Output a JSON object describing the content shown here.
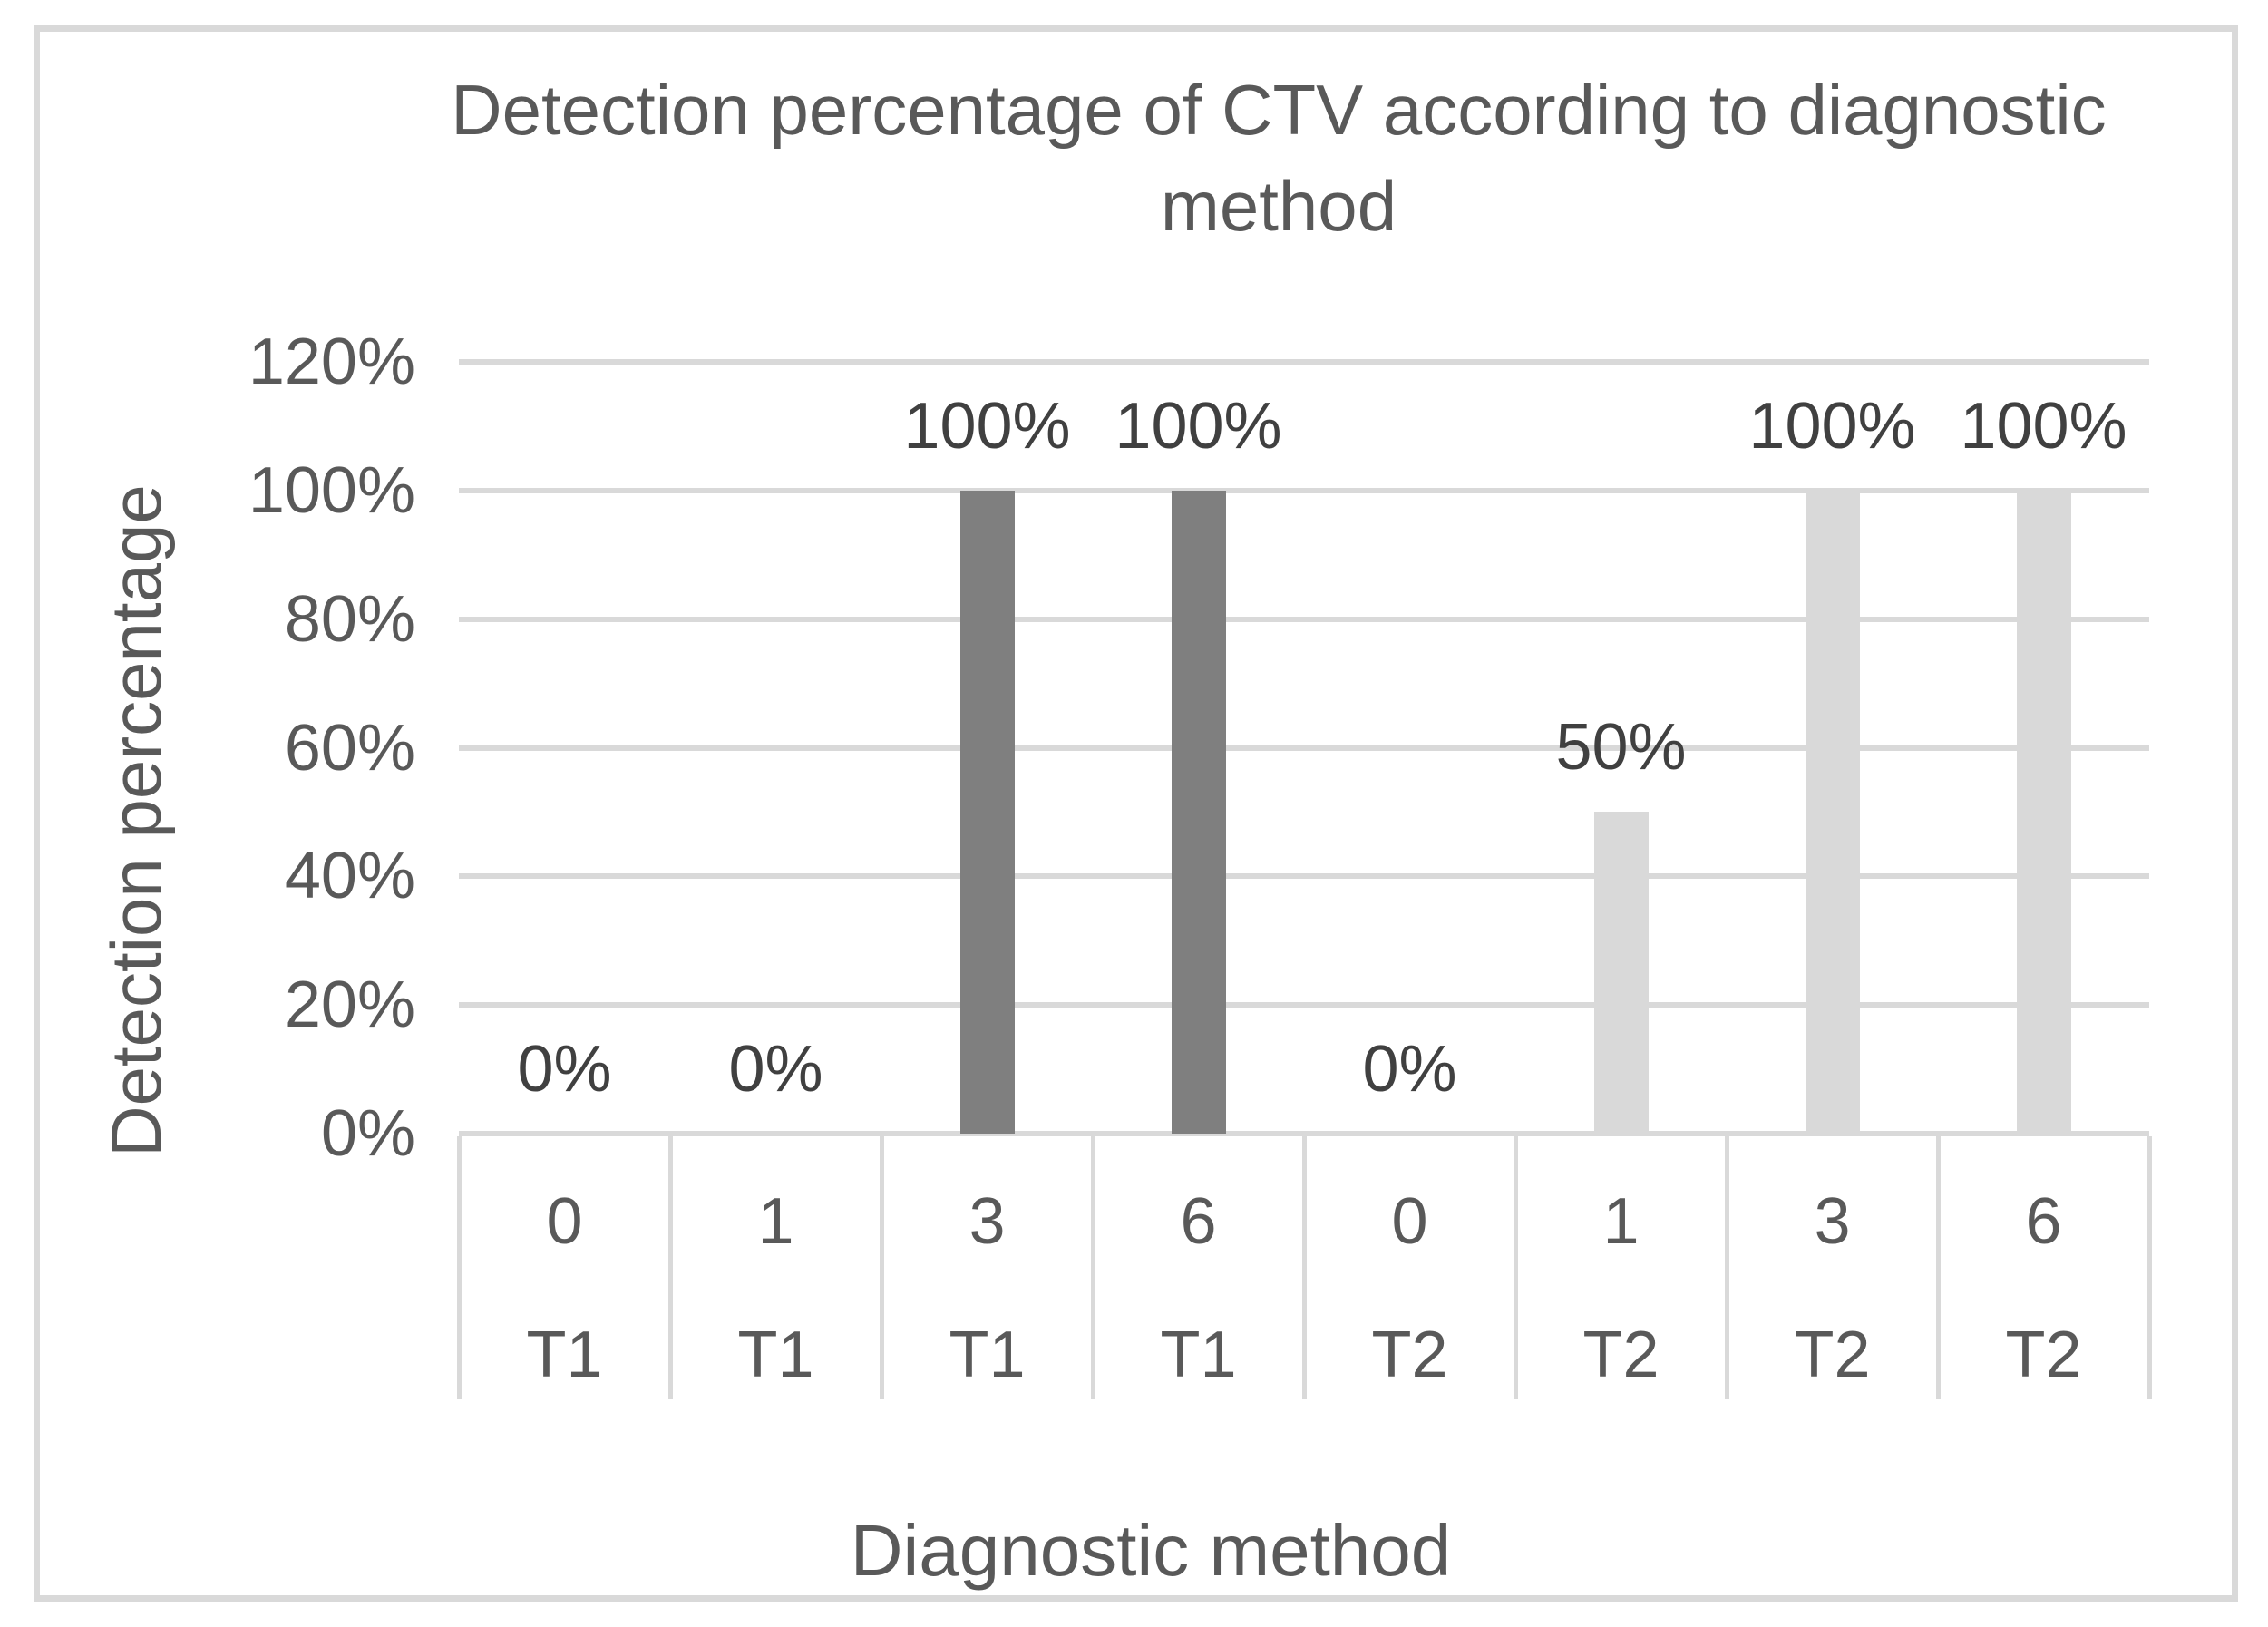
{
  "figure": {
    "title_line1": "Detection percentage of CTV according to diagnostic",
    "title_line2": "method",
    "y_axis_title": "Detection percentage",
    "x_axis_title": "Diagnostic method"
  },
  "chart_data": {
    "type": "bar",
    "title": "Detection percentage of CTV according to diagnostic method",
    "xlabel": "Diagnostic method",
    "ylabel": "Detection percentage",
    "ylim": [
      0,
      1.2
    ],
    "grid": true,
    "legend": "none",
    "y_ticks": [
      {
        "label": "120%",
        "value": 1.2
      },
      {
        "label": "100%",
        "value": 1.0
      },
      {
        "label": "80%",
        "value": 0.8
      },
      {
        "label": "60%",
        "value": 0.6
      },
      {
        "label": "40%",
        "value": 0.4
      },
      {
        "label": "20%",
        "value": 0.2
      },
      {
        "label": "0%",
        "value": 0.0
      }
    ],
    "categories": [
      {
        "x": "0",
        "group": "T1",
        "value": 0.0,
        "data_label": "0%"
      },
      {
        "x": "1",
        "group": "T1",
        "value": 0.0,
        "data_label": "0%"
      },
      {
        "x": "3",
        "group": "T1",
        "value": 1.0,
        "data_label": "100%"
      },
      {
        "x": "6",
        "group": "T1",
        "value": 1.0,
        "data_label": "100%"
      },
      {
        "x": "0",
        "group": "T2",
        "value": 0.0,
        "data_label": "0%"
      },
      {
        "x": "1",
        "group": "T2",
        "value": 0.5,
        "data_label": "50%"
      },
      {
        "x": "3",
        "group": "T2",
        "value": 1.0,
        "data_label": "100%"
      },
      {
        "x": "6",
        "group": "T2",
        "value": 1.0,
        "data_label": "100%"
      }
    ],
    "colors": {
      "t1_bar": "#7f7f7f",
      "t2_bar": "#d9d9d9",
      "gridline": "#d9d9d9",
      "frame_border": "#d9d9d9",
      "axis_text": "#595959",
      "data_label_text": "#404040"
    }
  }
}
